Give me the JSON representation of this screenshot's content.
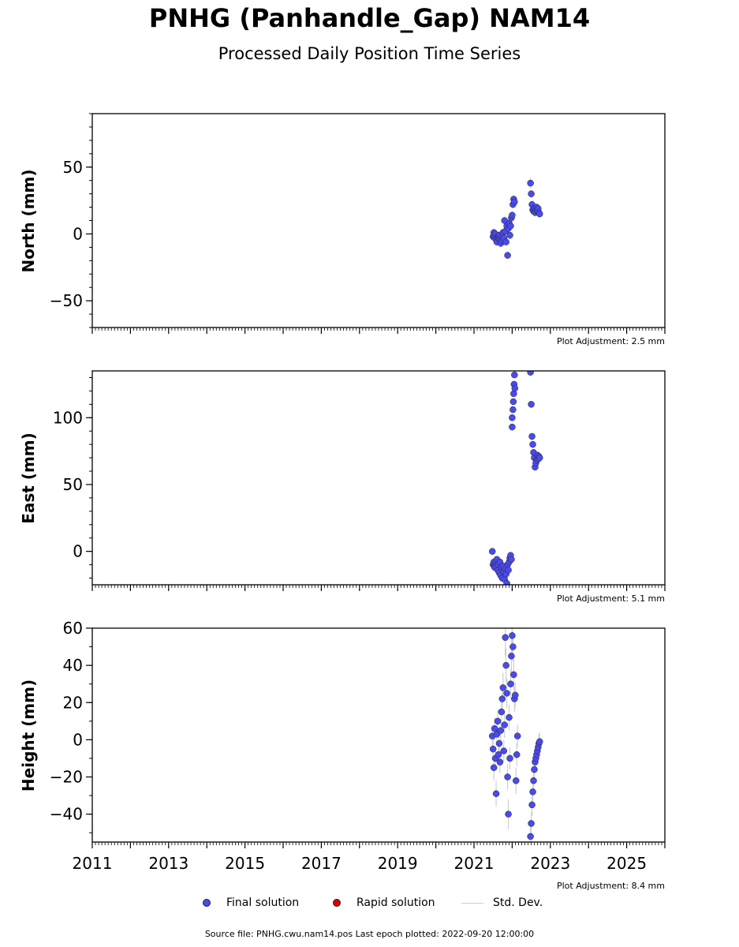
{
  "title": "PNHG (Panhandle_Gap) NAM14",
  "subtitle": "Processed Daily Position Time Series",
  "source_note": "Source file: PNHG.cwu.nam14.pos  Last epoch plotted: 2022-09-20 12:00:00",
  "legend": {
    "final": "Final solution",
    "rapid": "Rapid solution",
    "stddev": "Std. Dev."
  },
  "colors": {
    "final": "#4a4aee",
    "rapid": "#dd0000",
    "stddev": "#cfcfcf"
  },
  "chart_data": [
    {
      "type": "scatter",
      "ylabel": "North (mm)",
      "adjustment": "Plot Adjustment: 2.5 mm",
      "xlim": [
        2011,
        2026
      ],
      "ylim": [
        -70,
        90
      ],
      "yticks": [
        -50,
        0,
        50
      ],
      "ytick_labels": [
        "−50",
        "0",
        "50"
      ],
      "series": [
        {
          "x": [
            2021.5,
            2021.52,
            2021.54,
            2021.56,
            2021.58,
            2021.6,
            2021.62,
            2021.64,
            2021.66,
            2021.68,
            2021.7,
            2021.72,
            2021.74,
            2021.76,
            2021.78,
            2021.8,
            2021.82,
            2021.84,
            2021.86,
            2021.88,
            2021.9,
            2021.92,
            2021.94,
            2021.96,
            2021.98,
            2022.0,
            2022.02,
            2022.04,
            2022.06,
            2022.48,
            2022.5,
            2022.52,
            2022.54,
            2022.56,
            2022.58,
            2022.6,
            2022.62,
            2022.64,
            2022.66,
            2022.68,
            2022.7,
            2022.72
          ],
          "y": [
            -2,
            1,
            -3,
            0,
            -4,
            -6,
            -2,
            -3,
            -1,
            -4,
            -7,
            -2,
            -5,
            1,
            -3,
            10,
            2,
            -6,
            6,
            -16,
            4,
            8,
            -1,
            6,
            12,
            14,
            22,
            26,
            24,
            38,
            30,
            22,
            18,
            17,
            19,
            16,
            18,
            20,
            17,
            19,
            16,
            15
          ],
          "err": [
            3,
            3,
            3,
            3,
            3,
            3,
            3,
            3,
            3,
            3,
            3,
            3,
            3,
            3,
            3,
            3,
            3,
            3,
            3,
            3,
            3,
            3,
            3,
            3,
            3,
            3,
            3,
            3,
            3,
            4,
            3,
            3,
            3,
            3,
            3,
            3,
            3,
            3,
            3,
            3,
            3,
            3
          ]
        }
      ]
    },
    {
      "type": "scatter",
      "ylabel": "East (mm)",
      "adjustment": "Plot Adjustment: 5.1 mm",
      "xlim": [
        2011,
        2026
      ],
      "ylim": [
        -25,
        135
      ],
      "yticks": [
        0,
        50,
        100
      ],
      "ytick_labels": [
        "0",
        "50",
        "100"
      ],
      "series": [
        {
          "x": [
            2021.48,
            2021.5,
            2021.52,
            2021.54,
            2021.56,
            2021.58,
            2021.6,
            2021.62,
            2021.64,
            2021.66,
            2021.68,
            2021.7,
            2021.72,
            2021.74,
            2021.76,
            2021.78,
            2021.8,
            2021.82,
            2021.84,
            2021.86,
            2021.88,
            2021.9,
            2021.92,
            2021.94,
            2021.96,
            2021.98,
            2022.0,
            2022.0,
            2022.02,
            2022.03,
            2022.04,
            2022.05,
            2022.06,
            2022.07,
            2022.48,
            2022.5,
            2022.52,
            2022.54,
            2022.56,
            2022.58,
            2022.6,
            2022.62,
            2022.64,
            2022.66,
            2022.68,
            2022.7,
            2022.72
          ],
          "y": [
            0,
            -10,
            -8,
            -12,
            -9,
            -11,
            -6,
            -14,
            -10,
            -16,
            -8,
            -18,
            -12,
            -20,
            -11,
            -15,
            -21,
            -13,
            -17,
            -24,
            -10,
            -14,
            -8,
            -5,
            -3,
            -6,
            93,
            100,
            106,
            112,
            118,
            125,
            132,
            122,
            134,
            110,
            86,
            80,
            74,
            70,
            63,
            66,
            68,
            72,
            69,
            71,
            70
          ],
          "err": [
            2,
            2,
            2,
            2,
            2,
            2,
            2,
            2,
            2,
            2,
            2,
            2,
            2,
            2,
            2,
            2,
            2,
            2,
            2,
            2,
            2,
            2,
            2,
            2,
            2,
            2,
            2,
            2,
            2,
            2,
            2,
            2,
            2,
            2,
            2,
            2,
            2,
            2,
            2,
            2,
            2,
            2,
            2,
            2,
            2,
            2,
            2
          ]
        }
      ]
    },
    {
      "type": "scatter",
      "ylabel": "Height (mm)",
      "adjustment": "Plot Adjustment: 8.4 mm",
      "xlim": [
        2011,
        2026
      ],
      "ylim": [
        -55,
        60
      ],
      "yticks": [
        -40,
        -20,
        0,
        20,
        40,
        60
      ],
      "ytick_labels": [
        "−40",
        "−20",
        "0",
        "20",
        "40",
        "60"
      ],
      "xticks": [
        2011,
        2013,
        2015,
        2017,
        2019,
        2021,
        2023,
        2025
      ],
      "xtick_labels": [
        "2011",
        "2013",
        "2015",
        "2017",
        "2019",
        "2021",
        "2023",
        "2025"
      ],
      "series": [
        {
          "x": [
            2021.48,
            2021.5,
            2021.52,
            2021.54,
            2021.56,
            2021.58,
            2021.6,
            2021.62,
            2021.64,
            2021.66,
            2021.68,
            2021.7,
            2021.72,
            2021.74,
            2021.76,
            2021.78,
            2021.8,
            2021.82,
            2021.84,
            2021.86,
            2021.88,
            2021.9,
            2021.92,
            2021.94,
            2021.96,
            2021.98,
            2022.0,
            2022.02,
            2022.04,
            2022.06,
            2022.08,
            2022.1,
            2022.12,
            2022.14,
            2022.48,
            2022.5,
            2022.52,
            2022.54,
            2022.56,
            2022.58,
            2022.6,
            2022.62,
            2022.64,
            2022.66,
            2022.68,
            2022.7,
            2022.72
          ],
          "y": [
            2,
            -5,
            -15,
            6,
            -10,
            -29,
            3,
            10,
            -8,
            -2,
            -12,
            5,
            15,
            22,
            28,
            -6,
            8,
            55,
            40,
            25,
            -20,
            -40,
            12,
            -10,
            30,
            45,
            56,
            50,
            35,
            22,
            24,
            -22,
            -8,
            2,
            -52,
            -45,
            -35,
            -28,
            -22,
            -16,
            -12,
            -10,
            -8,
            -6,
            -4,
            -2,
            -1
          ],
          "err": [
            6,
            6,
            7,
            6,
            6,
            7,
            6,
            6,
            6,
            6,
            6,
            6,
            7,
            7,
            8,
            6,
            7,
            10,
            9,
            8,
            7,
            8,
            7,
            6,
            8,
            9,
            9,
            8,
            8,
            7,
            7,
            7,
            6,
            6,
            7,
            6,
            6,
            6,
            6,
            6,
            5,
            5,
            5,
            5,
            5,
            5,
            5
          ]
        }
      ]
    }
  ]
}
